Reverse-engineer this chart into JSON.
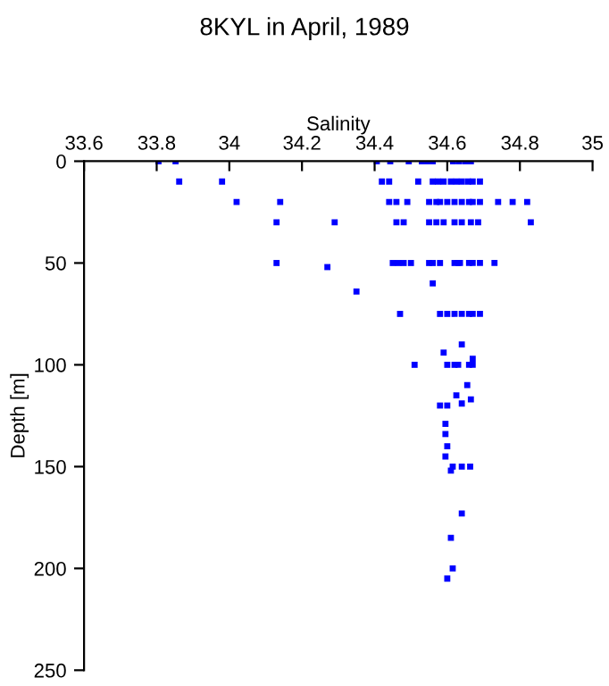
{
  "chart_data": {
    "type": "scatter",
    "title": "8KYL in April, 1989",
    "xlabel": "Salinity",
    "ylabel": "Depth [m]",
    "xlim": [
      33.6,
      35
    ],
    "xticks": [
      33.6,
      33.8,
      34,
      34.2,
      34.4,
      34.6,
      34.8,
      35
    ],
    "ylim": [
      250,
      0
    ],
    "yticks": [
      0,
      50,
      100,
      150,
      200,
      250
    ],
    "grid": false,
    "marker": "square",
    "series": [
      {
        "color": "#0000ff",
        "x": [
          33.805,
          33.852,
          34.406,
          34.443,
          34.494,
          34.53,
          34.545,
          34.56,
          34.616,
          34.632,
          34.649,
          34.665,
          33.862,
          33.98,
          34.42,
          34.44,
          34.52,
          34.56,
          34.575,
          34.59,
          34.61,
          34.625,
          34.64,
          34.657,
          34.67,
          34.69,
          34.02,
          34.14,
          34.44,
          34.46,
          34.49,
          34.55,
          34.57,
          34.58,
          34.6,
          34.62,
          34.64,
          34.66,
          34.67,
          34.69,
          34.74,
          34.78,
          34.82,
          34.13,
          34.29,
          34.46,
          34.48,
          34.55,
          34.57,
          34.59,
          34.62,
          34.64,
          34.665,
          34.685,
          34.83,
          34.13,
          34.45,
          34.465,
          34.48,
          34.5,
          34.55,
          34.56,
          34.58,
          34.62,
          34.63,
          34.635,
          34.66,
          34.67,
          34.69,
          34.73,
          34.27,
          34.56,
          34.35,
          34.47,
          34.58,
          34.6,
          34.62,
          34.64,
          34.66,
          34.67,
          34.69,
          34.64,
          34.59,
          34.67,
          34.51,
          34.6,
          34.62,
          34.63,
          34.66,
          34.67,
          34.655,
          34.625,
          34.665,
          34.64,
          34.58,
          34.6,
          34.595,
          34.595,
          34.6,
          34.595,
          34.615,
          34.64,
          34.663,
          34.61,
          34.64,
          34.61,
          34.615,
          34.6
        ],
        "values": [
          0,
          0,
          0,
          0,
          0,
          0,
          0,
          0,
          0,
          0,
          0,
          0,
          10,
          10,
          10,
          10,
          10,
          10,
          10,
          10,
          10,
          10,
          10,
          10,
          10,
          10,
          20,
          20,
          20,
          20,
          20,
          20,
          20,
          20,
          20,
          20,
          20,
          20,
          20,
          20,
          20,
          20,
          20,
          30,
          30,
          30,
          30,
          30,
          30,
          30,
          30,
          30,
          30,
          30,
          30,
          50,
          50,
          50,
          50,
          50,
          50,
          50,
          50,
          50,
          50,
          50,
          50,
          50,
          50,
          50,
          52,
          60,
          64,
          75,
          75,
          75,
          75,
          75,
          75,
          75,
          75,
          90,
          94,
          97,
          100,
          100,
          100,
          100,
          100,
          100,
          110,
          115,
          117,
          119,
          120,
          120,
          129,
          134,
          140,
          145,
          150,
          150,
          150,
          152,
          173,
          185,
          200,
          205
        ]
      }
    ]
  }
}
